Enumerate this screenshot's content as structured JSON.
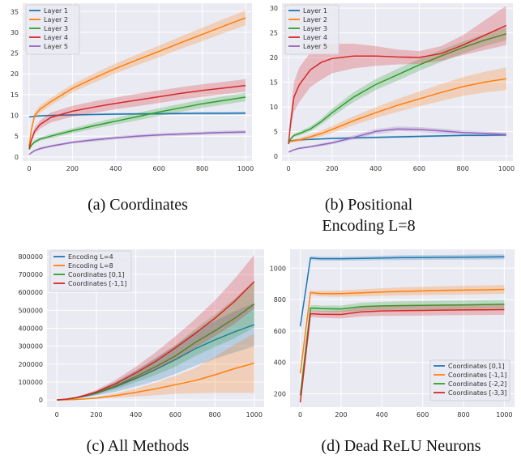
{
  "colors": {
    "blue": "#1f77b4",
    "orange": "#ff7f0e",
    "green": "#2ca02c",
    "red": "#d62728",
    "purple": "#9467bd",
    "panel_bg": "#eaeaf2",
    "grid": "#ffffff"
  },
  "captions": [
    "(a) Coordinates",
    "(b) Positional Encoding L=8",
    "(c) All Methods",
    "(d) Dead ReLU Neurons"
  ],
  "chart_data": [
    {
      "type": "line",
      "title": "",
      "xlabel": "",
      "ylabel": "",
      "xlim": [
        -30,
        1030
      ],
      "ylim": [
        -1,
        37
      ],
      "xticks": [
        0,
        200,
        400,
        600,
        800,
        1000
      ],
      "xtick_labels": [
        "0",
        "200",
        "400",
        "600",
        "800",
        "1000"
      ],
      "yticks": [
        0,
        5,
        10,
        15,
        20,
        25,
        30,
        35
      ],
      "ytick_labels": [
        "0",
        "5",
        "10",
        "15",
        "20",
        "25",
        "30",
        "35"
      ],
      "grid": true,
      "legend": "top-left",
      "x": [
        0,
        10,
        25,
        50,
        100,
        200,
        300,
        400,
        500,
        600,
        700,
        800,
        900,
        1000
      ],
      "series": [
        {
          "name": "Layer 1",
          "color": "blue",
          "values": [
            9.6,
            9.7,
            9.8,
            9.9,
            10.0,
            10.1,
            10.2,
            10.3,
            10.35,
            10.4,
            10.45,
            10.5,
            10.5,
            10.55
          ],
          "spread": [
            0.1,
            0.15,
            0.2,
            0.2,
            0.2,
            0.25,
            0.25,
            0.3,
            0.3,
            0.3,
            0.3,
            0.35,
            0.35,
            0.35
          ]
        },
        {
          "name": "Layer 2",
          "color": "orange",
          "values": [
            2.5,
            6.5,
            10.0,
            11.5,
            13.3,
            16.5,
            19.0,
            21.3,
            23.4,
            25.4,
            27.5,
            29.5,
            31.5,
            33.5
          ],
          "spread": [
            0.3,
            0.6,
            0.8,
            0.9,
            0.9,
            1.0,
            1.1,
            1.2,
            1.3,
            1.4,
            1.5,
            1.6,
            1.7,
            1.8
          ]
        },
        {
          "name": "Layer 3",
          "color": "green",
          "values": [
            1.8,
            2.8,
            3.6,
            4.3,
            5.0,
            6.3,
            7.5,
            8.6,
            9.7,
            10.8,
            11.8,
            12.8,
            13.6,
            14.4
          ],
          "spread": [
            0.2,
            0.3,
            0.4,
            0.4,
            0.5,
            0.6,
            0.7,
            0.8,
            0.9,
            0.9,
            1.0,
            1.0,
            1.0,
            1.0
          ]
        },
        {
          "name": "Layer 4",
          "color": "red",
          "values": [
            2.0,
            4.0,
            6.2,
            7.8,
            9.5,
            11.0,
            12.0,
            12.9,
            13.7,
            14.5,
            15.3,
            16.0,
            16.6,
            17.2
          ],
          "spread": [
            0.3,
            0.5,
            0.8,
            1.0,
            1.2,
            1.3,
            1.4,
            1.4,
            1.5,
            1.5,
            1.5,
            1.5,
            1.5,
            1.5
          ]
        },
        {
          "name": "Layer 5",
          "color": "purple",
          "values": [
            0.6,
            1.0,
            1.5,
            2.0,
            2.6,
            3.5,
            4.1,
            4.6,
            5.0,
            5.3,
            5.5,
            5.7,
            5.9,
            6.0
          ],
          "spread": [
            0.1,
            0.2,
            0.2,
            0.3,
            0.3,
            0.3,
            0.4,
            0.4,
            0.4,
            0.4,
            0.4,
            0.4,
            0.4,
            0.4
          ]
        }
      ]
    },
    {
      "type": "line",
      "title": "",
      "xlabel": "",
      "ylabel": "",
      "xlim": [
        -30,
        1030
      ],
      "ylim": [
        -1,
        31
      ],
      "xticks": [
        0,
        200,
        400,
        600,
        800,
        1000
      ],
      "xtick_labels": [
        "0",
        "200",
        "400",
        "600",
        "800",
        "1000"
      ],
      "yticks": [
        0,
        5,
        10,
        15,
        20,
        25,
        30
      ],
      "ytick_labels": [
        "0",
        "5",
        "10",
        "15",
        "20",
        "25",
        "30"
      ],
      "grid": true,
      "legend": "top-left",
      "x": [
        0,
        10,
        25,
        50,
        100,
        150,
        200,
        300,
        400,
        500,
        600,
        700,
        800,
        900,
        1000
      ],
      "series": [
        {
          "name": "Layer 1",
          "color": "blue",
          "values": [
            3.0,
            3.1,
            3.2,
            3.3,
            3.4,
            3.5,
            3.6,
            3.7,
            3.8,
            3.9,
            4.0,
            4.1,
            4.2,
            4.2,
            4.3
          ],
          "spread": [
            0.1,
            0.1,
            0.1,
            0.15,
            0.15,
            0.15,
            0.2,
            0.2,
            0.2,
            0.2,
            0.2,
            0.2,
            0.2,
            0.2,
            0.2
          ]
        },
        {
          "name": "Layer 2",
          "color": "orange",
          "values": [
            3.0,
            3.0,
            3.1,
            3.3,
            3.9,
            4.6,
            5.4,
            7.2,
            8.8,
            10.3,
            11.6,
            12.9,
            14.1,
            15.0,
            15.7
          ],
          "spread": [
            0.2,
            0.2,
            0.3,
            0.4,
            0.5,
            0.6,
            0.7,
            0.9,
            1.1,
            1.3,
            1.5,
            1.7,
            1.9,
            2.1,
            2.3
          ]
        },
        {
          "name": "Layer 3",
          "color": "green",
          "values": [
            2.5,
            3.5,
            4.2,
            4.6,
            5.5,
            7.0,
            8.8,
            12.0,
            14.5,
            16.5,
            18.5,
            20.3,
            22.0,
            23.5,
            24.8
          ],
          "spread": [
            0.2,
            0.3,
            0.3,
            0.4,
            0.5,
            0.6,
            0.8,
            1.0,
            1.1,
            1.2,
            1.2,
            1.2,
            1.2,
            1.2,
            1.3
          ]
        },
        {
          "name": "Layer 4",
          "color": "red",
          "values": [
            2.5,
            7.0,
            12.0,
            14.5,
            17.5,
            19.0,
            19.8,
            20.3,
            20.3,
            20.1,
            20.0,
            20.8,
            22.5,
            24.5,
            26.5
          ],
          "spread": [
            0.3,
            1.5,
            3.0,
            3.5,
            3.5,
            3.5,
            3.0,
            2.5,
            2.0,
            1.5,
            1.3,
            1.5,
            2.0,
            3.0,
            4.0
          ]
        },
        {
          "name": "Layer 5",
          "color": "purple",
          "values": [
            0.8,
            1.0,
            1.3,
            1.6,
            1.9,
            2.3,
            2.7,
            3.8,
            5.0,
            5.5,
            5.4,
            5.1,
            4.8,
            4.6,
            4.4
          ],
          "spread": [
            0.1,
            0.1,
            0.1,
            0.2,
            0.2,
            0.3,
            0.3,
            0.4,
            0.5,
            0.5,
            0.5,
            0.5,
            0.4,
            0.4,
            0.4
          ]
        }
      ]
    },
    {
      "type": "line",
      "title": "",
      "xlabel": "",
      "ylabel": "",
      "xlim": [
        -50,
        1050
      ],
      "ylim": [
        -40000,
        840000
      ],
      "xticks": [
        0,
        200,
        400,
        600,
        800,
        1000
      ],
      "xtick_labels": [
        "0",
        "200",
        "400",
        "600",
        "800",
        "1000"
      ],
      "yticks": [
        0,
        100000,
        200000,
        300000,
        400000,
        500000,
        600000,
        700000,
        800000
      ],
      "ytick_labels": [
        "0",
        "100000",
        "200000",
        "300000",
        "400000",
        "500000",
        "600000",
        "700000",
        "800000"
      ],
      "grid": true,
      "legend": "top-left",
      "x": [
        0,
        50,
        100,
        150,
        200,
        300,
        400,
        500,
        600,
        700,
        800,
        900,
        1000
      ],
      "series": [
        {
          "name": "Encoding L=4",
          "color": "blue",
          "values": [
            0,
            4000,
            12000,
            23000,
            37000,
            75000,
            120000,
            170000,
            225000,
            285000,
            335000,
            380000,
            420000
          ],
          "spread": [
            0,
            1000,
            3000,
            7000,
            12000,
            28000,
            45000,
            65000,
            80000,
            95000,
            105000,
            115000,
            120000
          ]
        },
        {
          "name": "Encoding L=8",
          "color": "orange",
          "values": [
            0,
            1000,
            3000,
            6000,
            11000,
            25000,
            42000,
            62000,
            85000,
            108000,
            140000,
            175000,
            205000
          ],
          "spread": [
            0,
            500,
            1500,
            3000,
            5000,
            12000,
            22000,
            35000,
            50000,
            70000,
            100000,
            135000,
            165000
          ]
        },
        {
          "name": "Coordinates [0,1]",
          "color": "green",
          "values": [
            0,
            4000,
            12000,
            25000,
            40000,
            80000,
            130000,
            185000,
            245000,
            320000,
            385000,
            455000,
            535000
          ],
          "spread": [
            0,
            1000,
            3000,
            6000,
            10000,
            20000,
            32000,
            45000,
            60000,
            75000,
            90000,
            110000,
            130000
          ]
        },
        {
          "name": "Coordinates [-1,1]",
          "color": "red",
          "values": [
            0,
            5000,
            14000,
            28000,
            45000,
            92000,
            150000,
            215000,
            290000,
            370000,
            455000,
            550000,
            660000
          ],
          "spread": [
            0,
            1000,
            3000,
            7000,
            11000,
            22000,
            35000,
            50000,
            65000,
            80000,
            100000,
            125000,
            150000
          ]
        }
      ]
    },
    {
      "type": "line",
      "title": "",
      "xlabel": "",
      "ylabel": "",
      "xlim": [
        -50,
        1050
      ],
      "ylim": [
        115,
        1120
      ],
      "xticks": [
        0,
        200,
        400,
        600,
        800,
        1000
      ],
      "xtick_labels": [
        "0",
        "200",
        "400",
        "600",
        "800",
        "1000"
      ],
      "yticks": [
        200,
        400,
        600,
        800,
        1000
      ],
      "ytick_labels": [
        "200",
        "400",
        "600",
        "800",
        "1000"
      ],
      "grid": true,
      "legend": "bottom-right",
      "x": [
        0,
        50,
        75,
        100,
        200,
        300,
        400,
        500,
        600,
        700,
        800,
        900,
        1000
      ],
      "series": [
        {
          "name": "Coordinates [0,1]",
          "color": "blue",
          "values": [
            630,
            1065,
            1062,
            1060,
            1060,
            1062,
            1065,
            1067,
            1068,
            1069,
            1070,
            1071,
            1072
          ],
          "spread": [
            5,
            12,
            12,
            12,
            12,
            13,
            14,
            15,
            15,
            15,
            16,
            16,
            16
          ]
        },
        {
          "name": "Coordinates [-1,1]",
          "color": "orange",
          "values": [
            330,
            845,
            840,
            838,
            838,
            843,
            848,
            852,
            855,
            858,
            860,
            862,
            865
          ],
          "spread": [
            5,
            15,
            15,
            18,
            20,
            22,
            24,
            25,
            26,
            27,
            28,
            28,
            28
          ]
        },
        {
          "name": "Coordinates [-2,2]",
          "color": "green",
          "values": [
            190,
            745,
            745,
            742,
            740,
            755,
            760,
            762,
            763,
            765,
            766,
            768,
            770
          ],
          "spread": [
            5,
            18,
            20,
            20,
            22,
            25,
            26,
            27,
            27,
            28,
            28,
            28,
            28
          ]
        },
        {
          "name": "Coordinates [-3,3]",
          "color": "red",
          "values": [
            145,
            710,
            708,
            706,
            705,
            722,
            728,
            730,
            731,
            733,
            734,
            735,
            736
          ],
          "spread": [
            5,
            20,
            22,
            22,
            25,
            30,
            32,
            33,
            33,
            33,
            33,
            33,
            33
          ]
        }
      ]
    }
  ]
}
